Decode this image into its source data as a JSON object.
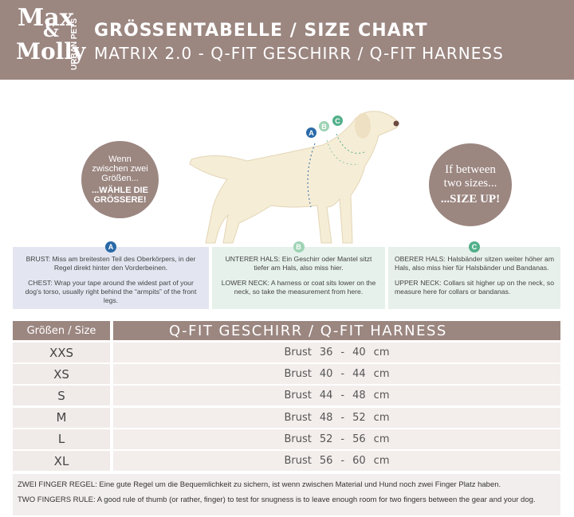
{
  "header": {
    "logo": {
      "line1": "Max",
      "amp": "&",
      "line2": "Molly",
      "tagline": "URBAN PETS"
    },
    "title": "GRÖSSENTABELLE / SIZE CHART",
    "subtitle": "MATRIX 2.0 - Q-FIT GESCHIRR / Q-FIT HARNESS"
  },
  "bubbles": [
    {
      "text": "Wenn zwischen zwei Größen...",
      "emphasis": "...WÄHLE DIE GRÖSSERE!"
    },
    {
      "text": "If between two sizes...",
      "emphasis": "...SIZE UP!"
    }
  ],
  "measures": [
    {
      "marker": "A",
      "de_term": "BRUST:",
      "de": "Miss am breitesten Teil des Oberkörpers, in der Regel direkt hinter den Vorderbeinen.",
      "en_term": "CHEST:",
      "en": "Wrap your tape around the widest part of your dog's torso, usually right behind the “armpits” of the front legs."
    },
    {
      "marker": "B",
      "de_term": "UNTERER HALS:",
      "de": "Ein Geschirr oder Mantel sitzt tiefer am Hals, also miss hier.",
      "en_term": "LOWER NECK:",
      "en": "A harness or coat sits lower on the neck, so take the measurement from here."
    },
    {
      "marker": "C",
      "de_term": "OBERER HALS:",
      "de": "Halsbänder sitzen weiter höher am Hals, also miss hier für Halsbänder und Bandanas.",
      "en_term": "UPPER NECK:",
      "en": "Collars sit higher up on the neck, so measure here for collars or bandanas."
    }
  ],
  "table": {
    "header": [
      "Größen / Size",
      "Q-FIT GESCHIRR / Q-FIT HARNESS"
    ],
    "rows": [
      {
        "size": "XXS",
        "measure": "Brust",
        "min": 36,
        "sep": "-",
        "max": 40,
        "unit": "cm"
      },
      {
        "size": "XS",
        "measure": "Brust",
        "min": 40,
        "sep": "-",
        "max": 44,
        "unit": "cm"
      },
      {
        "size": "S",
        "measure": "Brust",
        "min": 44,
        "sep": "-",
        "max": 48,
        "unit": "cm"
      },
      {
        "size": "M",
        "measure": "Brust",
        "min": 48,
        "sep": "-",
        "max": 52,
        "unit": "cm"
      },
      {
        "size": "L",
        "measure": "Brust",
        "min": 52,
        "sep": "-",
        "max": 56,
        "unit": "cm"
      },
      {
        "size": "XL",
        "measure": "Brust",
        "min": 56,
        "sep": "-",
        "max": 60,
        "unit": "cm"
      }
    ]
  },
  "footer": [
    {
      "term": "ZWEI FINGER REGEL:",
      "text": "Eine gute Regel um die Bequemlichkeit zu sichern, ist wenn zwischen Material und Hund noch zwei Finger Platz haben."
    },
    {
      "term": "TWO FINGERS RULE:",
      "text": "A good rule of thumb (or rather, finger) to test for snugness is to leave enough room for two fingers between the gear and your dog."
    }
  ]
}
